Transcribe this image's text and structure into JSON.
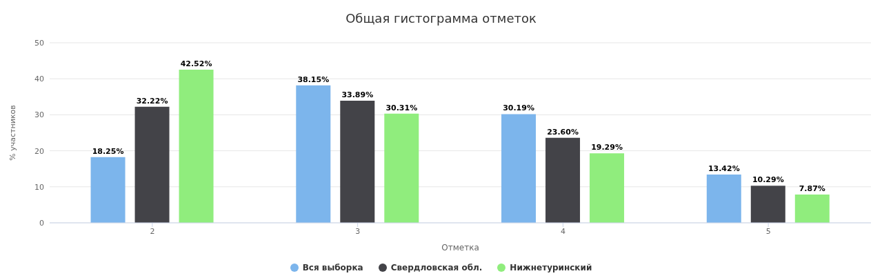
{
  "chart_data": {
    "type": "bar",
    "title": "Общая гистограмма отметок",
    "xlabel": "Отметка",
    "ylabel": "% участников",
    "categories": [
      "2",
      "3",
      "4",
      "5"
    ],
    "series": [
      {
        "name": "Вся выборка",
        "color": "#7cb5ec",
        "values": [
          18.25,
          38.15,
          30.19,
          13.42
        ],
        "value_labels": [
          "18.25%",
          "38.15%",
          "30.19%",
          "13.42%"
        ]
      },
      {
        "name": "Свердловская обл.",
        "color": "#434348",
        "values": [
          32.22,
          33.89,
          23.6,
          10.29
        ],
        "value_labels": [
          "32.22%",
          "33.89%",
          "23.60%",
          "10.29%"
        ]
      },
      {
        "name": "Нижнетуринский",
        "color": "#90ed7d",
        "values": [
          42.52,
          30.31,
          19.29,
          7.87
        ],
        "value_labels": [
          "42.52%",
          "30.31%",
          "19.29%",
          "7.87%"
        ]
      }
    ],
    "ylim": [
      0,
      50
    ],
    "yticks": [
      0,
      10,
      20,
      30,
      40,
      50
    ],
    "grid": "y",
    "legend": "bottom"
  }
}
